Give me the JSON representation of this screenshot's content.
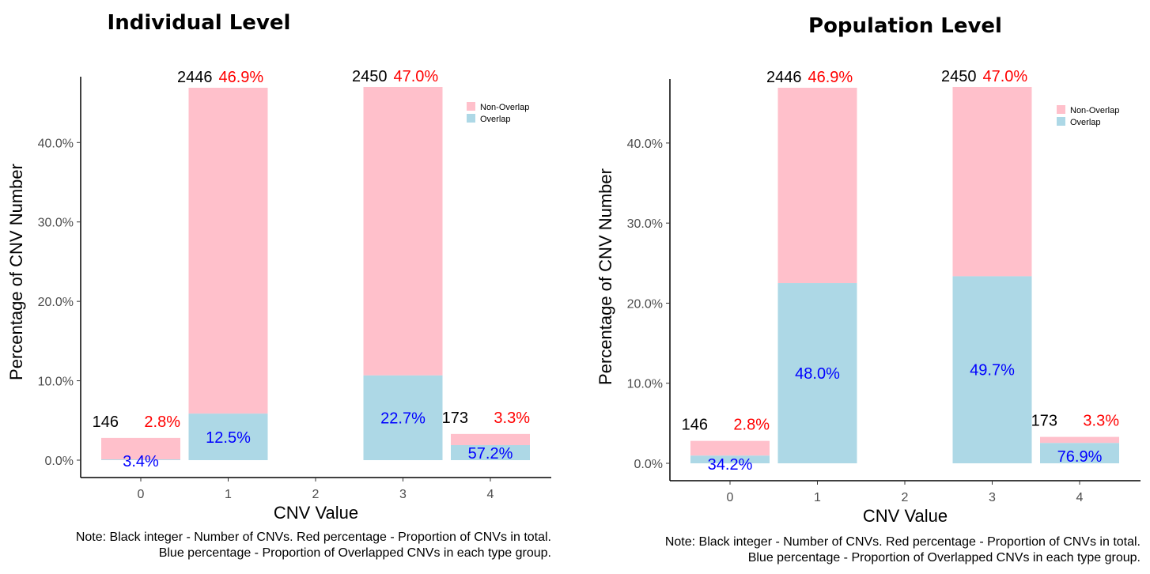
{
  "colors": {
    "non_overlap": "#ffc0cb",
    "overlap": "#add8e6",
    "count_text": "#000000",
    "total_pct_text": "#ff0000",
    "overlap_pct_text": "#0000ff"
  },
  "chart_data": [
    {
      "type": "bar",
      "stacked": true,
      "title": "Individual Level",
      "xlabel": "CNV Value",
      "ylabel": "Percentage of CNV Number",
      "x_ticks": [
        "0",
        "1",
        "2",
        "3",
        "4"
      ],
      "categories": [
        "0",
        "1",
        "3",
        "4"
      ],
      "ylim": [
        0,
        0.47
      ],
      "y_ticks": [
        0,
        0.1,
        0.2,
        0.3,
        0.4
      ],
      "y_tick_labels": [
        "0.0%",
        "10.0%",
        "20.0%",
        "30.0%",
        "40.0%"
      ],
      "legend_position": "top-right",
      "series": [
        {
          "name": "Non-Overlap",
          "values": [
            0.0271,
            0.4104,
            0.3633,
            0.0141
          ]
        },
        {
          "name": "Overlap",
          "values": [
            0.0009,
            0.0586,
            0.1067,
            0.0189
          ]
        }
      ],
      "count_labels": [
        "146",
        "2446",
        "2450",
        "173"
      ],
      "total_pct_labels": [
        "2.8%",
        "46.9%",
        "47.0%",
        "3.3%"
      ],
      "overlap_pct_labels": [
        "3.4%",
        "12.5%",
        "22.7%",
        "57.2%"
      ],
      "note": [
        "Note: Black integer - Number of CNVs. Red percentage - Proportion of CNVs in total.",
        "Blue percentage - Proportion of Overlapped CNVs in each type group."
      ]
    },
    {
      "type": "bar",
      "stacked": true,
      "title": "Population Level",
      "xlabel": "CNV Value",
      "ylabel": "Percentage of CNV Number",
      "x_ticks": [
        "0",
        "1",
        "2",
        "3",
        "4"
      ],
      "categories": [
        "0",
        "1",
        "3",
        "4"
      ],
      "ylim": [
        0,
        0.47
      ],
      "y_ticks": [
        0,
        0.1,
        0.2,
        0.3,
        0.4
      ],
      "y_tick_labels": [
        "0.0%",
        "10.0%",
        "20.0%",
        "30.0%",
        "40.0%"
      ],
      "legend_position": "top-right",
      "series": [
        {
          "name": "Non-Overlap",
          "values": [
            0.0184,
            0.2439,
            0.2364,
            0.0076
          ]
        },
        {
          "name": "Overlap",
          "values": [
            0.0096,
            0.2251,
            0.2336,
            0.0254
          ]
        }
      ],
      "count_labels": [
        "146",
        "2446",
        "2450",
        "173"
      ],
      "total_pct_labels": [
        "2.8%",
        "46.9%",
        "47.0%",
        "3.3%"
      ],
      "overlap_pct_labels": [
        "34.2%",
        "48.0%",
        "49.7%",
        "76.9%"
      ],
      "note": [
        "Note: Black integer - Number of CNVs. Red percentage - Proportion of CNVs in total.",
        "Blue percentage - Proportion of Overlapped CNVs in each type group."
      ]
    }
  ]
}
